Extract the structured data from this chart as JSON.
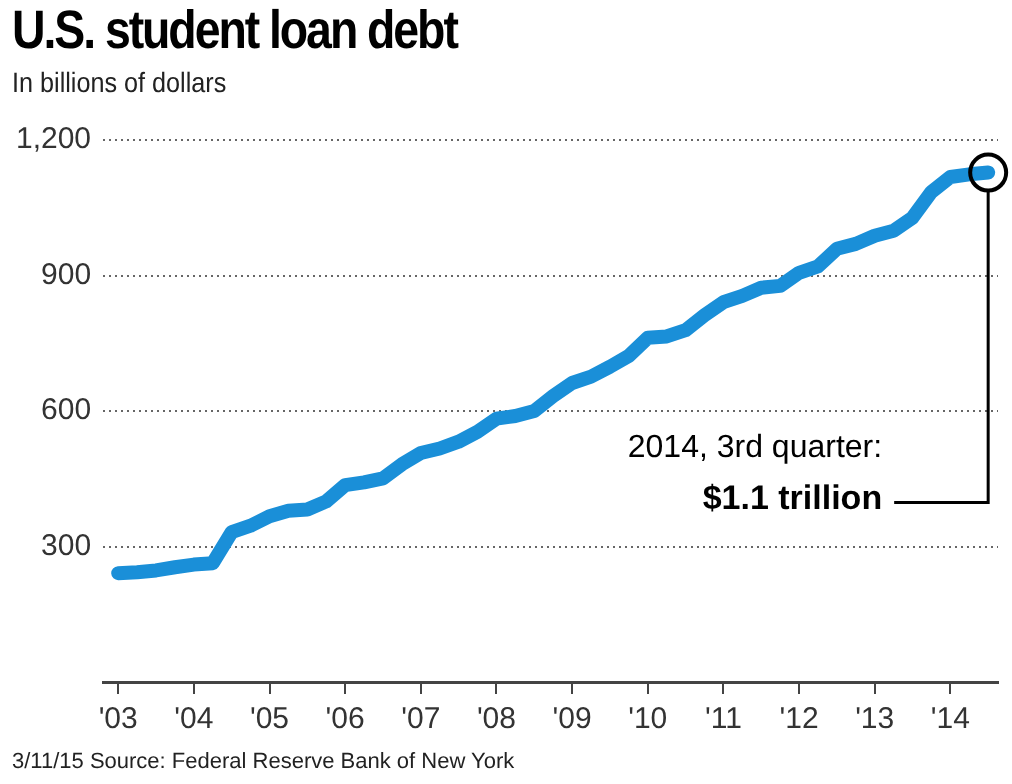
{
  "chart_data": {
    "type": "line",
    "title": "U.S. student loan debt",
    "subtitle": "In billions of dollars",
    "x": [
      2003,
      2003.25,
      2003.5,
      2003.75,
      2004,
      2004.25,
      2004.5,
      2004.75,
      2005,
      2005.25,
      2005.5,
      2005.75,
      2006,
      2006.25,
      2006.5,
      2006.75,
      2007,
      2007.25,
      2007.5,
      2007.75,
      2008,
      2008.25,
      2008.5,
      2008.75,
      2009,
      2009.25,
      2009.5,
      2009.75,
      2010,
      2010.25,
      2010.5,
      2010.75,
      2011,
      2011.25,
      2011.5,
      2011.75,
      2012,
      2012.25,
      2012.5,
      2012.75,
      2013,
      2013.25,
      2013.5,
      2013.75,
      2014,
      2014.25,
      2014.5
    ],
    "series": [
      {
        "color": "#1a8fd8",
        "values": [
          241,
          243,
          247,
          254,
          260,
          263,
          332,
          346,
          367,
          379,
          382,
          400,
          436,
          442,
          451,
          482,
          507,
          517,
          532,
          554,
          583,
          589,
          600,
          633,
          662,
          676,
          698,
          722,
          762,
          765,
          779,
          812,
          841,
          855,
          873,
          877,
          906,
          920,
          959,
          970,
          988,
          999,
          1028,
          1085,
          1118,
          1124,
          1128
        ]
      }
    ],
    "xlim": [
      2002.8,
      2014.63
    ],
    "xticks": [
      {
        "value": 2003,
        "label": "'03"
      },
      {
        "value": 2004,
        "label": "'04"
      },
      {
        "value": 2005,
        "label": "'05"
      },
      {
        "value": 2006,
        "label": "'06"
      },
      {
        "value": 2007,
        "label": "'07"
      },
      {
        "value": 2008,
        "label": "'08"
      },
      {
        "value": 2009,
        "label": "'09"
      },
      {
        "value": 2010,
        "label": "'10"
      },
      {
        "value": 2011,
        "label": "'11"
      },
      {
        "value": 2012,
        "label": "'12"
      },
      {
        "value": 2013,
        "label": "'13"
      },
      {
        "value": 2014,
        "label": "'14"
      }
    ],
    "ylim": [
      0,
      1200
    ],
    "yticks": [
      300,
      600,
      900,
      {
        "value": 1200,
        "label": "1,200"
      }
    ],
    "grid": "y",
    "legend": false,
    "marker": "none",
    "line_style": "solid",
    "annotations": [
      {
        "text": "2014, 3rd quarter:\n$1.1 trillion",
        "x": 2014.5,
        "y": 1128
      },
      "3/11/15 Source: Federal Reserve Bank of New York"
    ]
  }
}
